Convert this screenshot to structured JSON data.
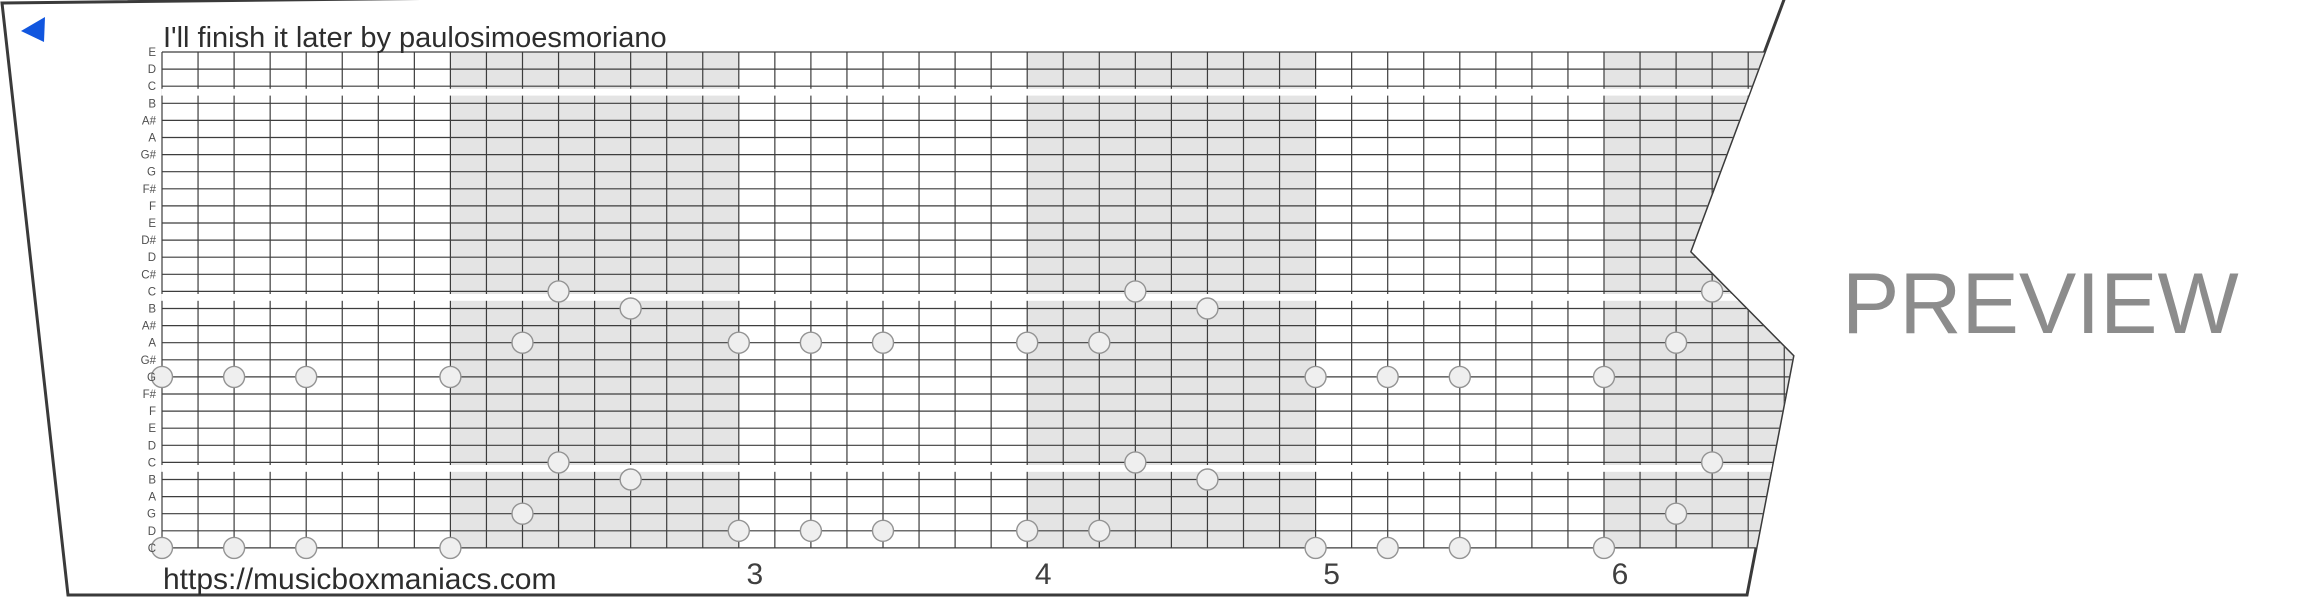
{
  "page": {
    "background": "#ffffff"
  },
  "toolbar": {
    "back_arrow_color": "#1156DF"
  },
  "preview_watermark": {
    "label": "PREVIEW",
    "color": "#8C8C8C"
  },
  "strip": {
    "title": "I'll finish it later by paulosimoesmoriano",
    "url": "https://musicboxmaniacs.com",
    "note_labels": [
      "E",
      "D",
      "C",
      "B",
      "A#",
      "A",
      "G#",
      "G",
      "F#",
      "F",
      "E",
      "D#",
      "D",
      "C#",
      "C",
      "B",
      "A#",
      "A",
      "G#",
      "G",
      "F#",
      "F",
      "E",
      "D",
      "C",
      "B",
      "A",
      "G",
      "D",
      "C"
    ],
    "measure_numbers": [
      {
        "label": "3",
        "beat": 16
      },
      {
        "label": "4",
        "beat": 24
      },
      {
        "label": "5",
        "beat": 32
      },
      {
        "label": "6",
        "beat": 40
      }
    ],
    "shaded_measures_beats": [
      [
        8,
        16
      ],
      [
        24,
        32
      ],
      [
        40,
        48
      ]
    ],
    "octave_gap_rows": [
      2,
      14,
      24
    ],
    "colors": {
      "paper": "#ffffff",
      "paper_border": "#3A3A3A",
      "grid_line": "#3D3D3D",
      "shading": "#E4E4E4",
      "note_fill": "#EFEFEF",
      "note_stroke": "#939393",
      "label_text": "#4F4F4F",
      "number_text": "#3F3F3F",
      "title_text": "#2D2D2D"
    },
    "notes": [
      {
        "pitch": "G5",
        "row": 19,
        "beats": [
          0,
          2,
          4,
          8,
          32,
          34,
          36,
          40
        ]
      },
      {
        "pitch": "A5",
        "row": 17,
        "beats": [
          10,
          16,
          18,
          20,
          24,
          26,
          42
        ]
      },
      {
        "pitch": "C6",
        "row": 14,
        "beats": [
          11,
          27,
          43
        ]
      },
      {
        "pitch": "B5",
        "row": 15,
        "beats": [
          13,
          29
        ]
      },
      {
        "pitch": "C4",
        "row": 29,
        "beats": [
          0,
          2,
          4,
          8,
          32,
          34,
          36,
          40
        ]
      },
      {
        "pitch": "G4",
        "row": 27,
        "beats": [
          10,
          42
        ]
      },
      {
        "pitch": "C5",
        "row": 24,
        "beats": [
          11,
          27,
          43
        ]
      },
      {
        "pitch": "B4",
        "row": 25,
        "beats": [
          13,
          29
        ]
      },
      {
        "pitch": "D4",
        "row": 28,
        "beats": [
          16,
          18,
          20,
          24,
          26
        ]
      }
    ]
  }
}
